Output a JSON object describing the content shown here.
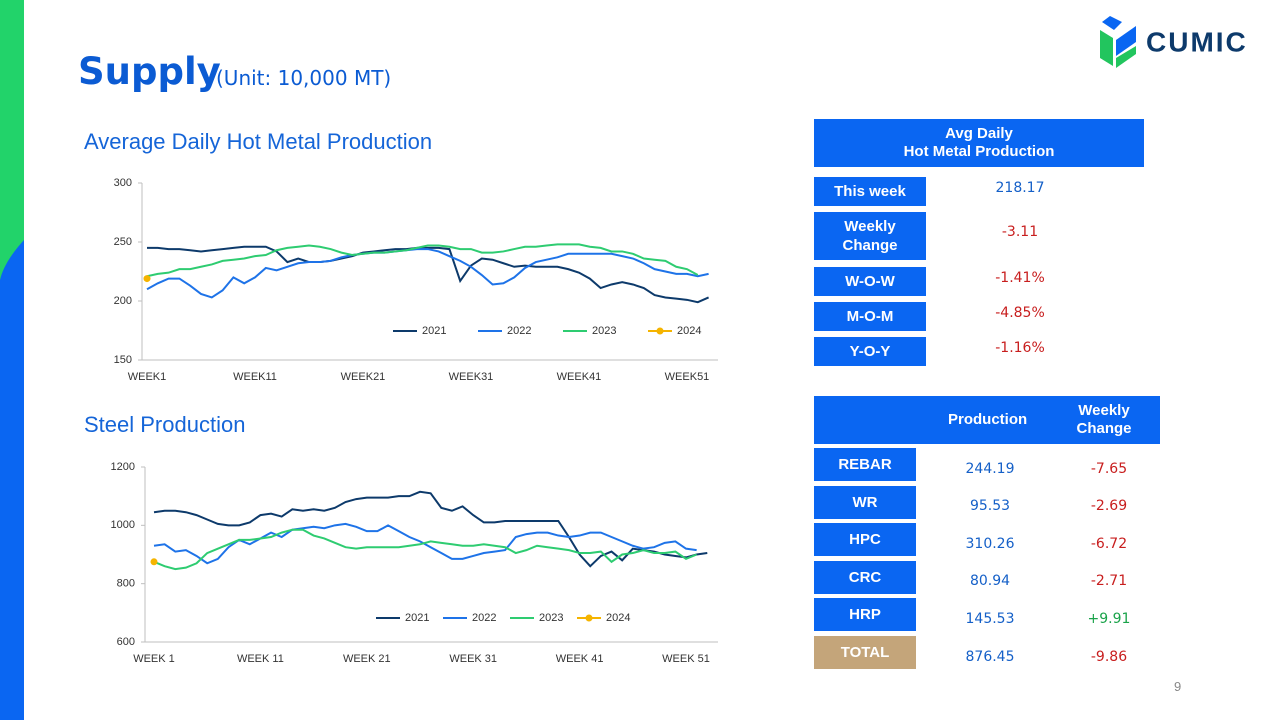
{
  "header": {
    "title": "Supply",
    "unit": "(Unit: 10,000 MT)",
    "logo": "CUMIC",
    "page": "9"
  },
  "chart_data": [
    {
      "type": "line",
      "title": "Average Daily Hot Metal Production",
      "categories": [
        "WEEK1",
        null,
        null,
        null,
        null,
        null,
        null,
        null,
        null,
        null,
        "WEEK11",
        null,
        null,
        null,
        null,
        null,
        null,
        null,
        null,
        null,
        "WEEK21",
        null,
        null,
        null,
        null,
        null,
        null,
        null,
        null,
        null,
        "WEEK31",
        null,
        null,
        null,
        null,
        null,
        null,
        null,
        null,
        null,
        "WEEK41",
        null,
        null,
        null,
        null,
        null,
        null,
        null,
        null,
        null,
        "WEEK51",
        null,
        null
      ],
      "ylim": [
        150,
        300
      ],
      "yticks": [
        150,
        200,
        250,
        300
      ],
      "grid": false,
      "legend": "bottom-right",
      "series": [
        {
          "name": "2021",
          "color": "#0d3a6b",
          "values": [
            245,
            245,
            244,
            244,
            243,
            242,
            243,
            244,
            245,
            246,
            246,
            246,
            242,
            233,
            236,
            233,
            233,
            234,
            236,
            238,
            241,
            242,
            243,
            244,
            244,
            245,
            245,
            245,
            244,
            217,
            230,
            236,
            235,
            232,
            229,
            230,
            229,
            229,
            229,
            227,
            224,
            219,
            211,
            214,
            216,
            214,
            211,
            205,
            203,
            202,
            201,
            199,
            203
          ]
        },
        {
          "name": "2022",
          "color": "#1e73e8",
          "values": [
            210,
            215,
            219,
            219,
            213,
            206,
            203,
            209,
            220,
            215,
            220,
            228,
            226,
            229,
            232,
            233,
            233,
            234,
            237,
            239,
            240,
            241,
            241,
            242,
            243,
            244,
            244,
            242,
            238,
            234,
            229,
            222,
            214,
            215,
            220,
            228,
            233,
            235,
            237,
            240,
            240,
            240,
            240,
            240,
            238,
            236,
            232,
            227,
            225,
            223,
            223,
            221,
            223
          ]
        },
        {
          "name": "2023",
          "color": "#2ecc71",
          "values": [
            221,
            223,
            224,
            227,
            227,
            229,
            231,
            234,
            235,
            236,
            238,
            239,
            243,
            245,
            246,
            247,
            246,
            244,
            241,
            239,
            240,
            241,
            241,
            242,
            243,
            245,
            247,
            247,
            246,
            244,
            244,
            241,
            241,
            242,
            244,
            246,
            246,
            247,
            248,
            248,
            248,
            246,
            245,
            242,
            242,
            240,
            236,
            235,
            234,
            229,
            227,
            222,
            null
          ]
        },
        {
          "name": "2024",
          "color": "#f5b400",
          "marker": "circle",
          "values": [
            219,
            null,
            null,
            null,
            null,
            null,
            null,
            null,
            null,
            null,
            null,
            null,
            null,
            null,
            null,
            null,
            null,
            null,
            null,
            null,
            null,
            null,
            null,
            null,
            null,
            null,
            null,
            null,
            null,
            null,
            null,
            null,
            null,
            null,
            null,
            null,
            null,
            null,
            null,
            null,
            null,
            null,
            null,
            null,
            null,
            null,
            null,
            null,
            null,
            null,
            null,
            null,
            null
          ]
        }
      ]
    },
    {
      "type": "line",
      "title": "Steel Production",
      "categories": [
        "WEEK 1",
        null,
        null,
        null,
        null,
        null,
        null,
        null,
        null,
        null,
        "WEEK 11",
        null,
        null,
        null,
        null,
        null,
        null,
        null,
        null,
        null,
        "WEEK 21",
        null,
        null,
        null,
        null,
        null,
        null,
        null,
        null,
        null,
        "WEEK 31",
        null,
        null,
        null,
        null,
        null,
        null,
        null,
        null,
        null,
        "WEEK 41",
        null,
        null,
        null,
        null,
        null,
        null,
        null,
        null,
        null,
        "WEEK 51",
        null,
        null
      ],
      "ylim": [
        600,
        1200
      ],
      "yticks": [
        600,
        800,
        1000,
        1200
      ],
      "grid": false,
      "legend": "bottom-center",
      "series": [
        {
          "name": "2021",
          "color": "#0d3a6b",
          "values": [
            1045,
            1050,
            1050,
            1045,
            1035,
            1020,
            1005,
            1000,
            1000,
            1010,
            1035,
            1040,
            1030,
            1055,
            1050,
            1055,
            1050,
            1060,
            1080,
            1090,
            1095,
            1095,
            1095,
            1100,
            1100,
            1115,
            1110,
            1060,
            1050,
            1065,
            1035,
            1010,
            1010,
            1015,
            1015,
            1015,
            1015,
            1015,
            1015,
            960,
            900,
            860,
            895,
            910,
            880,
            920,
            915,
            910,
            900,
            895,
            890,
            900,
            905
          ]
        },
        {
          "name": "2022",
          "color": "#1e73e8",
          "values": [
            930,
            935,
            910,
            915,
            895,
            870,
            885,
            925,
            950,
            935,
            955,
            975,
            960,
            985,
            990,
            995,
            990,
            1000,
            1005,
            995,
            980,
            980,
            1000,
            980,
            960,
            945,
            925,
            905,
            885,
            885,
            895,
            905,
            910,
            915,
            960,
            970,
            975,
            975,
            965,
            960,
            965,
            975,
            975,
            960,
            945,
            930,
            920,
            925,
            940,
            945,
            920,
            915,
            null
          ]
        },
        {
          "name": "2023",
          "color": "#2ecc71",
          "values": [
            875,
            860,
            850,
            855,
            870,
            905,
            920,
            935,
            950,
            950,
            955,
            960,
            975,
            985,
            985,
            965,
            955,
            940,
            925,
            920,
            925,
            925,
            925,
            925,
            930,
            935,
            945,
            940,
            935,
            930,
            930,
            935,
            930,
            925,
            905,
            915,
            930,
            925,
            920,
            915,
            905,
            905,
            910,
            875,
            900,
            905,
            915,
            905,
            905,
            910,
            885,
            900,
            null
          ]
        },
        {
          "name": "2024",
          "color": "#f5b400",
          "marker": "circle",
          "values": [
            875,
            null,
            null,
            null,
            null,
            null,
            null,
            null,
            null,
            null,
            null,
            null,
            null,
            null,
            null,
            null,
            null,
            null,
            null,
            null,
            null,
            null,
            null,
            null,
            null,
            null,
            null,
            null,
            null,
            null,
            null,
            null,
            null,
            null,
            null,
            null,
            null,
            null,
            null,
            null,
            null,
            null,
            null,
            null,
            null,
            null,
            null,
            null,
            null,
            null,
            null,
            null,
            null
          ]
        }
      ]
    }
  ],
  "hot_metal_table": {
    "header": "Avg Daily\nHot Metal Production",
    "rows": [
      [
        "This week",
        "218.17"
      ],
      [
        "Weekly\nChange",
        "-3.11"
      ],
      [
        "W-O-W",
        "-1.41%"
      ],
      [
        "M-O-M",
        "-4.85%"
      ],
      [
        "Y-O-Y",
        "-1.16%"
      ]
    ]
  },
  "steel_table": {
    "columns": [
      "Production",
      "Weekly\nChange"
    ],
    "rows": [
      [
        "REBAR",
        "244.19",
        "-7.65"
      ],
      [
        "WR",
        "95.53",
        "-2.69"
      ],
      [
        "HPC",
        "310.26",
        "-6.72"
      ],
      [
        "CRC",
        "80.94",
        "-2.71"
      ],
      [
        "HRP",
        "145.53",
        "+9.91"
      ],
      [
        "TOTAL",
        "876.45",
        "-9.86"
      ]
    ]
  }
}
